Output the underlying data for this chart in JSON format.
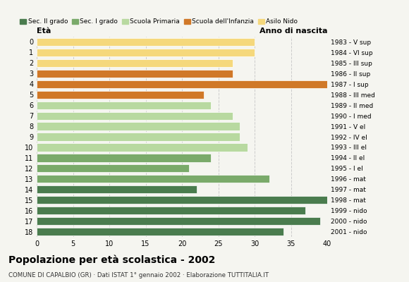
{
  "ages": [
    0,
    1,
    2,
    3,
    4,
    5,
    6,
    7,
    8,
    9,
    10,
    11,
    12,
    13,
    14,
    15,
    16,
    17,
    18
  ],
  "values": [
    30,
    30,
    27,
    27,
    40,
    23,
    24,
    27,
    28,
    28,
    29,
    24,
    21,
    32,
    22,
    40,
    37,
    39,
    34
  ],
  "anno_nascita": [
    "2001 - nido",
    "2000 - nido",
    "1999 - nido",
    "1998 - mat",
    "1997 - mat",
    "1996 - mat",
    "1995 - I el",
    "1994 - II el",
    "1993 - III el",
    "1992 - IV el",
    "1991 - V el",
    "1990 - I med",
    "1989 - II med",
    "1988 - III med",
    "1987 - I sup",
    "1986 - II sup",
    "1985 - III sup",
    "1984 - VI sup",
    "1983 - V sup"
  ],
  "colors": [
    "#f5d87c",
    "#f5d87c",
    "#f5d87c",
    "#d07828",
    "#d07828",
    "#d07828",
    "#b8d9a0",
    "#b8d9a0",
    "#b8d9a0",
    "#b8d9a0",
    "#b8d9a0",
    "#7aaa6a",
    "#7aaa6a",
    "#7aaa6a",
    "#4a7c4e",
    "#4a7c4e",
    "#4a7c4e",
    "#4a7c4e",
    "#4a7c4e"
  ],
  "legend_labels": [
    "Sec. II grado",
    "Sec. I grado",
    "Scuola Primaria",
    "Scuola dell'Infanzia",
    "Asilo Nido"
  ],
  "legend_colors": [
    "#4a7c4e",
    "#7aaa6a",
    "#b8d9a0",
    "#d07828",
    "#f5d87c"
  ],
  "title": "Popolazione per età scolastica - 2002",
  "subtitle": "COMUNE DI CAPALBIO (GR) · Dati ISTAT 1° gennaio 2002 · Elaborazione TUTTITALIA.IT",
  "label_left": "Età",
  "label_right": "Anno di nascita",
  "xlim": [
    0,
    40
  ],
  "xticks": [
    0,
    5,
    10,
    15,
    20,
    25,
    30,
    35,
    40
  ],
  "bg_color": "#f5f5f0"
}
